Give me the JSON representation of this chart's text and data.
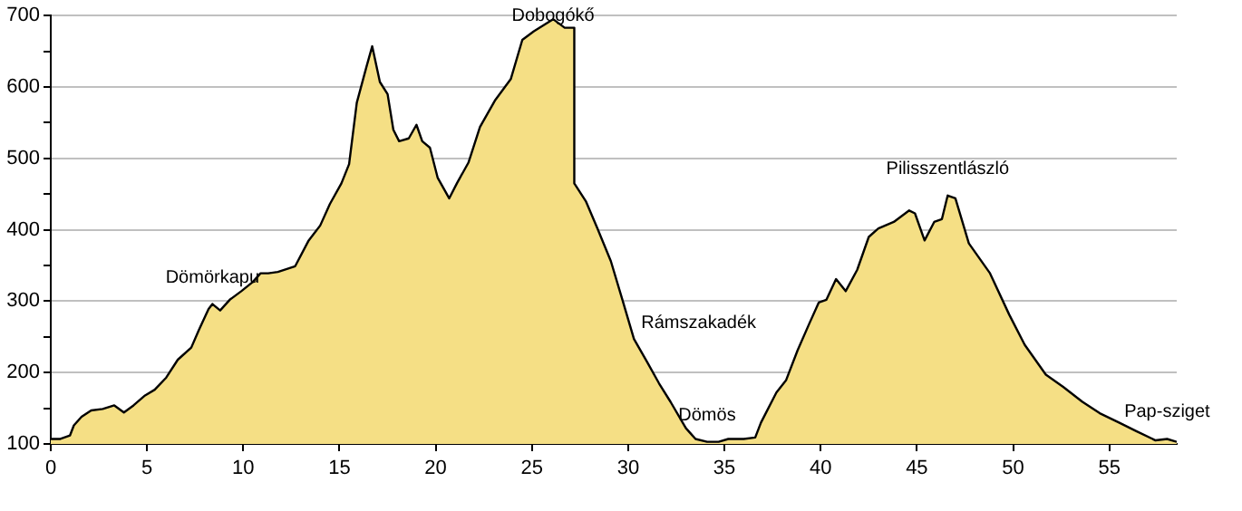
{
  "chart_data": {
    "type": "area",
    "x": [
      0,
      0.5,
      1.0,
      1.2,
      1.6,
      2.1,
      2.7,
      3.3,
      3.8,
      4.3,
      4.9,
      5.4,
      6.0,
      6.6,
      7.3,
      7.7,
      8.2,
      8.4,
      8.8,
      9.3,
      9.9,
      10.5,
      10.9,
      11.3,
      11.8,
      12.7,
      13.4,
      14.0,
      14.5,
      15.1,
      15.5,
      15.9,
      16.4,
      16.7,
      17.1,
      17.5,
      17.8,
      18.1,
      18.6,
      19.0,
      19.3,
      19.7,
      20.1,
      20.7,
      21.1,
      21.7,
      22.3,
      23.1,
      23.9,
      24.5,
      25.1,
      26.1,
      26.7,
      27.2,
      27.2,
      27.8,
      28.4,
      29.1,
      29.7,
      30.3,
      31.0,
      31.6,
      32.2,
      33.0,
      33.5,
      34.1,
      34.7,
      35.2,
      36.0,
      36.6,
      36.9,
      37.7,
      38.2,
      38.8,
      39.4,
      39.9,
      40.3,
      40.8,
      41.3,
      41.9,
      42.5,
      43.0,
      43.8,
      44.6,
      44.9,
      45.4,
      45.9,
      46.3,
      46.6,
      47.0,
      47.7,
      48.8,
      49.8,
      50.6,
      51.7,
      52.6,
      53.6,
      54.5,
      55.5,
      56.4,
      57.4,
      58.0,
      58.5
    ],
    "series": [
      {
        "color": "#f5df85",
        "values": [
          107,
          107,
          112,
          126,
          138,
          147,
          149,
          154,
          144,
          154,
          168,
          176,
          193,
          218,
          235,
          260,
          289,
          296,
          287,
          302,
          314,
          327,
          339,
          339,
          341,
          349,
          385,
          406,
          436,
          465,
          492,
          578,
          628,
          657,
          607,
          590,
          540,
          524,
          528,
          547,
          524,
          515,
          473,
          444,
          465,
          494,
          544,
          582,
          611,
          666,
          678,
          695,
          683,
          683,
          465,
          440,
          402,
          356,
          302,
          247,
          214,
          185,
          159,
          122,
          107,
          103,
          103,
          107,
          107,
          109,
          130,
          172,
          189,
          231,
          268,
          298,
          302,
          331,
          314,
          344,
          390,
          402,
          411,
          427,
          423,
          385,
          411,
          415,
          448,
          444,
          381,
          339,
          281,
          239,
          197,
          180,
          159,
          143,
          130,
          118,
          105,
          107,
          103
        ]
      }
    ],
    "xlim": [
      0,
      58.5
    ],
    "ylim": [
      100,
      700
    ],
    "xticks": [
      0,
      5,
      10,
      15,
      20,
      25,
      30,
      35,
      40,
      45,
      50,
      55
    ],
    "yticks": [
      100,
      {
        "value": 150,
        "label": null
      },
      200,
      {
        "value": 250,
        "label": null
      },
      300,
      {
        "value": 350,
        "label": null
      },
      400,
      {
        "value": 450,
        "label": null
      },
      500,
      {
        "value": 550,
        "label": null
      },
      600,
      {
        "value": 650,
        "label": null
      },
      700
    ],
    "grid": "y",
    "legend": false,
    "marker": "none",
    "line_style": "solid",
    "annotations": [
      {
        "text": "Dömörkapu",
        "x": 8.4,
        "y": 296
      },
      {
        "text": "Dobogókő",
        "x": 26.1,
        "y": 695
      },
      {
        "text": "Rámszakadék",
        "x": 30.3,
        "y": 247
      },
      {
        "text": "Dömös",
        "x": 34.1,
        "y": 103
      },
      {
        "text": "Pilisszentlászló",
        "x": 46.6,
        "y": 448
      },
      {
        "text": "Pap-sziget",
        "x": 58.0,
        "y": 107
      }
    ]
  }
}
